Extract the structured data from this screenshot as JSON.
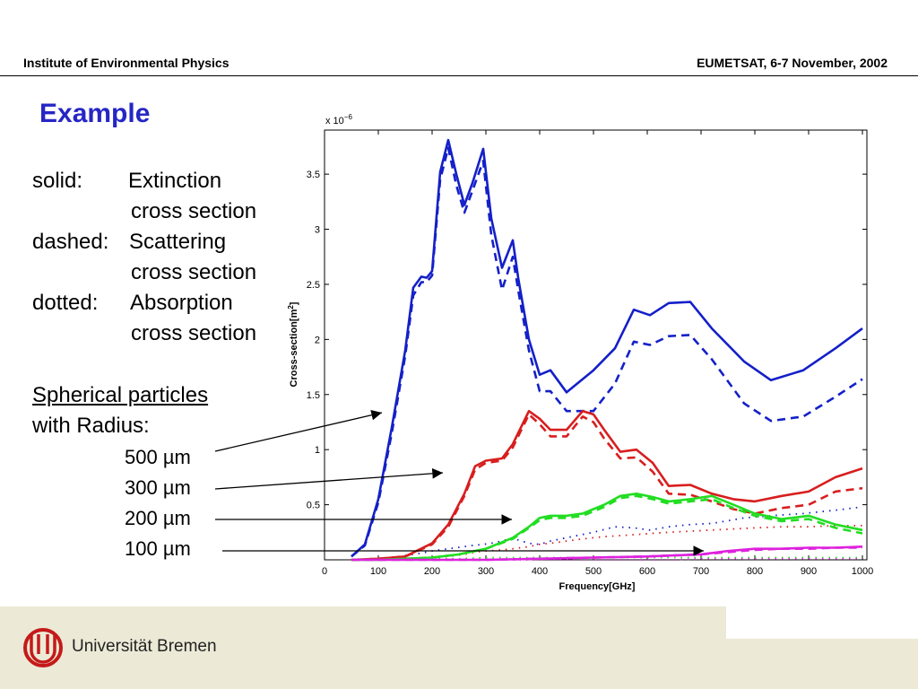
{
  "header": {
    "left": "Institute of Environmental Physics",
    "right": "EUMETSAT, 6-7 November, 2002"
  },
  "title": "Example",
  "legend": {
    "solid_key": "solid:",
    "solid_text_1": "Extinction",
    "solid_text_2": "cross section",
    "dashed_key": "dashed:",
    "dashed_text_1": "Scattering",
    "dashed_text_2": "cross section",
    "dotted_key": "dotted:",
    "dotted_text_1": "Absorption",
    "dotted_text_2": "cross section"
  },
  "particles": {
    "heading": "Spherical particles",
    "sub": "with Radius:",
    "radii": [
      "500 µm",
      "300 µm",
      "200 µm",
      "100 µm"
    ]
  },
  "footer": {
    "university": "Universität Bremen"
  },
  "colors": {
    "title": "#2626c6",
    "r500": "#1420c8",
    "r300": "#d81e1e",
    "r200": "#22dd22",
    "r100": "#dd22dd"
  },
  "chart_data": {
    "type": "line",
    "exponent_label": "x 10^-6",
    "xlabel": "Frequency[GHz]",
    "ylabel": "Cross-section[m^2]",
    "xlim": [
      0,
      1000
    ],
    "ylim": [
      0,
      3.9
    ],
    "xticks": [
      0,
      100,
      200,
      300,
      400,
      500,
      600,
      700,
      800,
      900,
      1000
    ],
    "yticks": [
      0.5,
      1,
      1.5,
      2,
      2.5,
      3,
      3.5
    ],
    "series": [
      {
        "radius": "500 µm",
        "color": "#1420c8",
        "x": [
          50,
          75,
          100,
          125,
          150,
          165,
          180,
          190,
          200,
          215,
          230,
          245,
          260,
          275,
          295,
          310,
          330,
          350,
          360,
          380,
          400,
          420,
          450,
          500,
          540,
          575,
          605,
          640,
          680,
          720,
          780,
          830,
          890,
          950,
          1000
        ],
        "extinction": [
          0.03,
          0.14,
          0.55,
          1.2,
          1.9,
          2.47,
          2.57,
          2.56,
          2.62,
          3.52,
          3.81,
          3.5,
          3.22,
          3.42,
          3.73,
          3.1,
          2.65,
          2.9,
          2.56,
          2.0,
          1.68,
          1.72,
          1.52,
          1.72,
          1.92,
          2.27,
          2.22,
          2.33,
          2.34,
          2.1,
          1.8,
          1.63,
          1.72,
          1.92,
          2.1
        ],
        "scattering": [
          0.03,
          0.13,
          0.52,
          1.15,
          1.85,
          2.4,
          2.52,
          2.52,
          2.58,
          3.45,
          3.74,
          3.4,
          3.15,
          3.35,
          3.62,
          2.95,
          2.45,
          2.75,
          2.45,
          1.9,
          1.53,
          1.53,
          1.35,
          1.35,
          1.6,
          1.98,
          1.95,
          2.03,
          2.04,
          1.82,
          1.42,
          1.26,
          1.3,
          1.48,
          1.64
        ],
        "absorption": [
          0.0,
          0.0,
          0.01,
          0.02,
          0.04,
          0.05,
          0.06,
          0.07,
          0.08,
          0.09,
          0.1,
          0.11,
          0.12,
          0.13,
          0.14,
          0.15,
          0.17,
          0.2,
          0.18,
          0.15,
          0.14,
          0.17,
          0.2,
          0.25,
          0.3,
          0.29,
          0.27,
          0.3,
          0.32,
          0.33,
          0.38,
          0.4,
          0.42,
          0.45,
          0.48
        ]
      },
      {
        "radius": "300 µm",
        "color": "#d81e1e",
        "x": [
          50,
          100,
          150,
          200,
          230,
          260,
          280,
          300,
          330,
          350,
          380,
          400,
          420,
          450,
          480,
          500,
          520,
          550,
          580,
          610,
          640,
          680,
          720,
          760,
          800,
          850,
          900,
          950,
          1000
        ],
        "extinction": [
          0.0,
          0.01,
          0.03,
          0.15,
          0.32,
          0.6,
          0.85,
          0.9,
          0.92,
          1.05,
          1.35,
          1.28,
          1.18,
          1.18,
          1.35,
          1.32,
          1.18,
          0.98,
          1.0,
          0.88,
          0.67,
          0.68,
          0.6,
          0.55,
          0.53,
          0.58,
          0.62,
          0.75,
          0.83
        ],
        "scattering": [
          0.0,
          0.01,
          0.03,
          0.14,
          0.3,
          0.58,
          0.82,
          0.88,
          0.9,
          1.02,
          1.32,
          1.23,
          1.12,
          1.12,
          1.3,
          1.25,
          1.1,
          0.92,
          0.93,
          0.8,
          0.6,
          0.59,
          0.53,
          0.46,
          0.42,
          0.47,
          0.5,
          0.62,
          0.65
        ],
        "absorption": [
          0.0,
          0.0,
          0.01,
          0.02,
          0.03,
          0.05,
          0.07,
          0.08,
          0.09,
          0.1,
          0.12,
          0.14,
          0.15,
          0.17,
          0.19,
          0.2,
          0.21,
          0.22,
          0.23,
          0.24,
          0.25,
          0.26,
          0.27,
          0.28,
          0.29,
          0.3,
          0.3,
          0.31,
          0.31
        ]
      },
      {
        "radius": "200 µm",
        "color": "#22dd22",
        "x": [
          50,
          100,
          150,
          200,
          250,
          300,
          350,
          380,
          400,
          420,
          450,
          480,
          500,
          520,
          550,
          580,
          610,
          640,
          680,
          720,
          760,
          800,
          850,
          900,
          950,
          1000
        ],
        "extinction": [
          0.0,
          0.0,
          0.01,
          0.02,
          0.05,
          0.1,
          0.2,
          0.3,
          0.38,
          0.4,
          0.4,
          0.42,
          0.46,
          0.5,
          0.58,
          0.6,
          0.57,
          0.53,
          0.55,
          0.58,
          0.5,
          0.42,
          0.37,
          0.4,
          0.32,
          0.27
        ],
        "scattering": [
          0.0,
          0.0,
          0.01,
          0.02,
          0.05,
          0.1,
          0.19,
          0.29,
          0.36,
          0.38,
          0.38,
          0.4,
          0.44,
          0.48,
          0.56,
          0.58,
          0.55,
          0.51,
          0.53,
          0.55,
          0.47,
          0.4,
          0.35,
          0.37,
          0.29,
          0.24
        ],
        "absorption": [
          0.0,
          0.0,
          0.0,
          0.01,
          0.01,
          0.02,
          0.02,
          0.02,
          0.02,
          0.02,
          0.02,
          0.02,
          0.02,
          0.02,
          0.02,
          0.02,
          0.02,
          0.02,
          0.02,
          0.02,
          0.02,
          0.02,
          0.02,
          0.02,
          0.02,
          0.02
        ]
      },
      {
        "radius": "100 µm",
        "color": "#dd22dd",
        "x": [
          50,
          100,
          200,
          300,
          400,
          500,
          600,
          650,
          700,
          750,
          800,
          850,
          900,
          950,
          1000
        ],
        "extinction": [
          0.0,
          0.0,
          0.0,
          0.0,
          0.01,
          0.02,
          0.03,
          0.04,
          0.05,
          0.08,
          0.1,
          0.1,
          0.11,
          0.11,
          0.12
        ],
        "scattering": [
          0.0,
          0.0,
          0.0,
          0.0,
          0.01,
          0.02,
          0.03,
          0.04,
          0.05,
          0.07,
          0.09,
          0.1,
          0.1,
          0.11,
          0.11
        ],
        "absorption": [
          0.0,
          0.0,
          0.0,
          0.0,
          0.0,
          0.0,
          0.0,
          0.0,
          0.01,
          0.01,
          0.01,
          0.01,
          0.01,
          0.01,
          0.01
        ]
      }
    ]
  }
}
